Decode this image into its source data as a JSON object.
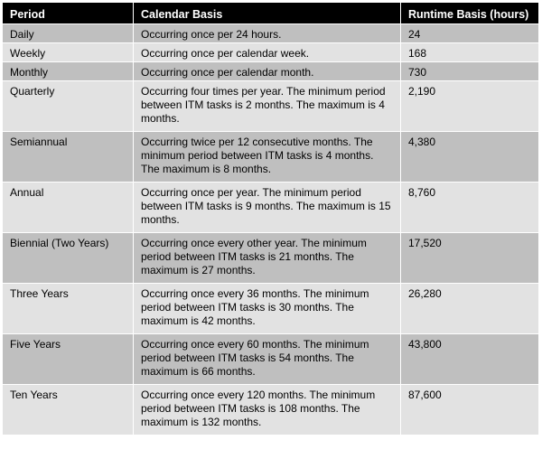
{
  "table": {
    "headers": [
      "Period",
      "Calendar Basis",
      "Runtime Basis (hours)"
    ],
    "rows": [
      {
        "period": "Daily",
        "calendar": "Occurring once per 24 hours.",
        "runtime": "24"
      },
      {
        "period": "Weekly",
        "calendar": "Occurring once per calendar week.",
        "runtime": "168"
      },
      {
        "period": "Monthly",
        "calendar": "Occurring once per calendar month.",
        "runtime": "730"
      },
      {
        "period": "Quarterly",
        "calendar": "Occurring four times per year. The minimum period between ITM tasks is 2 months. The maximum is 4 months.",
        "runtime": "2,190"
      },
      {
        "period": "Semiannual",
        "calendar": "Occurring twice per 12 consecutive months. The minimum period between ITM tasks is 4 months. The maximum is 8 months.",
        "runtime": "4,380"
      },
      {
        "period": "Annual",
        "calendar": "Occurring once per year. The minimum period between ITM tasks is 9 months. The maximum is 15 months.",
        "runtime": "8,760"
      },
      {
        "period": "Biennial (Two Years)",
        "calendar": "Occurring once every other year. The minimum period between ITM tasks is 21 months. The maximum is 27 months.",
        "runtime": "17,520"
      },
      {
        "period": "Three Years",
        "calendar": "Occurring once every 36 months. The minimum period between ITM tasks is 30 months. The maximum is 42 months.",
        "runtime": "26,280"
      },
      {
        "period": "Five Years",
        "calendar": "Occurring once every 60 months. The minimum period between ITM tasks is 54 months. The maximum is 66 months.",
        "runtime": "43,800"
      },
      {
        "period": "Ten Years",
        "calendar": "Occurring once every 120 months. The minimum period between ITM tasks is 108 months. The maximum is 132 months.",
        "runtime": "87,600"
      }
    ]
  },
  "colors": {
    "header_bg": "#000000",
    "header_text": "#ffffff",
    "row_dark": "#bfbfbf",
    "row_light": "#e2e2e2"
  }
}
